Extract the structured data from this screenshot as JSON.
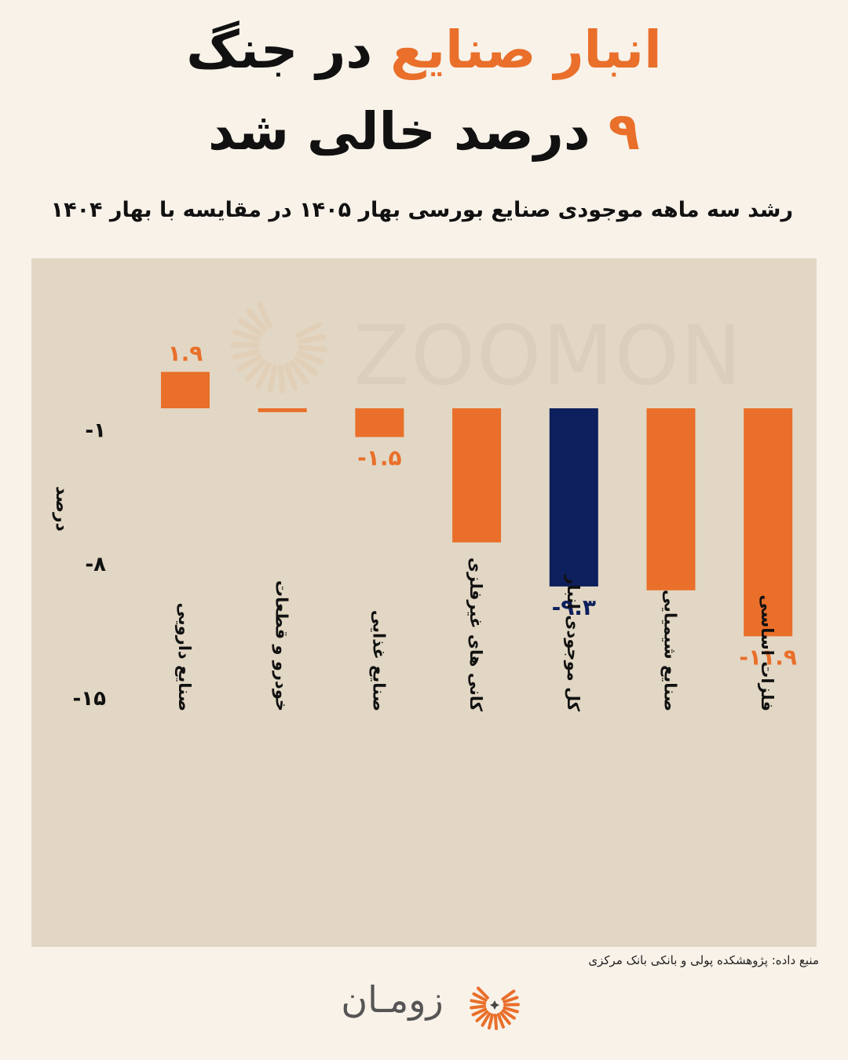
{
  "header": {
    "title_accent": "انبار صنایع",
    "title_rest": " در جنگ",
    "title_line2_accent": "۹",
    "title_line2_rest": " درصد خالی شد",
    "subtitle": "رشد سه ماهه موجودی صنایع بورسی بهار ۱۴۰۵ در مقایسه با بهار ۱۴۰۴"
  },
  "watermark": "ZOOMON",
  "footer": {
    "source": "منبع داده: پژوهشکده پولی و بانکی بانک مرکزی",
    "logo_text": "زومـان"
  },
  "colors": {
    "accent": "#e96f2a",
    "highlight": "#0d1f5c",
    "panel": "#e2d7c4",
    "background": "#f8f2e9"
  },
  "chart_data": {
    "type": "bar",
    "ylabel": "درصد",
    "ylim": [
      -15,
      3
    ],
    "yticks": [
      {
        "value": -1,
        "label": "-۱"
      },
      {
        "value": -8,
        "label": "-۸"
      },
      {
        "value": -15,
        "label": "-۱۵"
      }
    ],
    "categories": [
      "صنایع دارویی",
      "خودرو و قطعات",
      "صنایع غذایی",
      "کانی های غیرفلزی",
      "کل موجودی انبار",
      "صنایع شیمیایی",
      "فلزات اساسی"
    ],
    "values": [
      1.9,
      -0.2,
      -1.5,
      -7.0,
      -9.3,
      -9.5,
      -11.9
    ],
    "highlight_index": 4,
    "data_labels": [
      "۱.۹",
      "",
      "-۱.۵",
      "",
      "-۹.۳",
      "",
      "-۱۱.۹"
    ]
  }
}
